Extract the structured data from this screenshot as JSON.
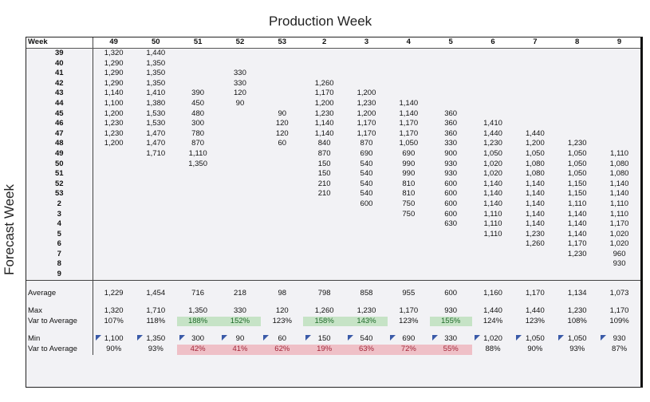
{
  "titles": {
    "production_week": "Production Week",
    "forecast_week": "Forecast Week"
  },
  "table": {
    "corner_label": "Week",
    "columns": [
      "49",
      "50",
      "51",
      "52",
      "53",
      "2",
      "3",
      "4",
      "5",
      "6",
      "7",
      "8",
      "9"
    ],
    "rows": [
      {
        "week": "39",
        "values": [
          "1,320",
          "1,440",
          "",
          "",
          "",
          "",
          "",
          "",
          "",
          "",
          "",
          "",
          ""
        ]
      },
      {
        "week": "40",
        "values": [
          "1,290",
          "1,350",
          "",
          "",
          "",
          "",
          "",
          "",
          "",
          "",
          "",
          "",
          ""
        ]
      },
      {
        "week": "41",
        "values": [
          "1,290",
          "1,350",
          "",
          "330",
          "",
          "",
          "",
          "",
          "",
          "",
          "",
          "",
          ""
        ]
      },
      {
        "week": "42",
        "values": [
          "1,290",
          "1,350",
          "",
          "330",
          "",
          "1,260",
          "",
          "",
          "",
          "",
          "",
          "",
          ""
        ]
      },
      {
        "week": "43",
        "values": [
          "1,140",
          "1,410",
          "390",
          "120",
          "",
          "1,170",
          "1,200",
          "",
          "",
          "",
          "",
          "",
          ""
        ]
      },
      {
        "week": "44",
        "values": [
          "1,100",
          "1,380",
          "450",
          "90",
          "",
          "1,200",
          "1,230",
          "1,140",
          "",
          "",
          "",
          "",
          ""
        ]
      },
      {
        "week": "45",
        "values": [
          "1,200",
          "1,530",
          "480",
          "",
          "90",
          "1,230",
          "1,200",
          "1,140",
          "360",
          "",
          "",
          "",
          ""
        ]
      },
      {
        "week": "46",
        "values": [
          "1,230",
          "1,530",
          "300",
          "",
          "120",
          "1,140",
          "1,170",
          "1,170",
          "360",
          "1,410",
          "",
          "",
          ""
        ]
      },
      {
        "week": "47",
        "values": [
          "1,230",
          "1,470",
          "780",
          "",
          "120",
          "1,140",
          "1,170",
          "1,170",
          "360",
          "1,440",
          "1,440",
          "",
          ""
        ]
      },
      {
        "week": "48",
        "values": [
          "1,200",
          "1,470",
          "870",
          "",
          "60",
          "840",
          "870",
          "1,050",
          "330",
          "1,230",
          "1,200",
          "1,230",
          ""
        ]
      },
      {
        "week": "49",
        "values": [
          "",
          "1,710",
          "1,110",
          "",
          "",
          "870",
          "690",
          "690",
          "900",
          "1,050",
          "1,050",
          "1,050",
          "1,110"
        ]
      },
      {
        "week": "50",
        "values": [
          "",
          "",
          "1,350",
          "",
          "",
          "150",
          "540",
          "990",
          "930",
          "1,020",
          "1,080",
          "1,050",
          "1,080"
        ]
      },
      {
        "week": "51",
        "values": [
          "",
          "",
          "",
          "",
          "",
          "150",
          "540",
          "990",
          "930",
          "1,020",
          "1,080",
          "1,050",
          "1,080"
        ]
      },
      {
        "week": "52",
        "values": [
          "",
          "",
          "",
          "",
          "",
          "210",
          "540",
          "810",
          "600",
          "1,140",
          "1,140",
          "1,150",
          "1,140"
        ]
      },
      {
        "week": "53",
        "values": [
          "",
          "",
          "",
          "",
          "",
          "210",
          "540",
          "810",
          "600",
          "1,140",
          "1,140",
          "1,150",
          "1,140"
        ]
      },
      {
        "week": "2",
        "values": [
          "",
          "",
          "",
          "",
          "",
          "",
          "600",
          "750",
          "600",
          "1,140",
          "1,140",
          "1,110",
          "1,110"
        ]
      },
      {
        "week": "3",
        "values": [
          "",
          "",
          "",
          "",
          "",
          "",
          "",
          "750",
          "600",
          "1,110",
          "1,140",
          "1,140",
          "1,110"
        ]
      },
      {
        "week": "4",
        "values": [
          "",
          "",
          "",
          "",
          "",
          "",
          "",
          "",
          "630",
          "1,110",
          "1,140",
          "1,140",
          "1,170"
        ]
      },
      {
        "week": "5",
        "values": [
          "",
          "",
          "",
          "",
          "",
          "",
          "",
          "",
          "",
          "1,110",
          "1,230",
          "1,140",
          "1,020"
        ]
      },
      {
        "week": "6",
        "values": [
          "",
          "",
          "",
          "",
          "",
          "",
          "",
          "",
          "",
          "",
          "1,260",
          "1,170",
          "1,020"
        ]
      },
      {
        "week": "7",
        "values": [
          "",
          "",
          "",
          "",
          "",
          "",
          "",
          "",
          "",
          "",
          "",
          "1,230",
          "960"
        ]
      },
      {
        "week": "8",
        "values": [
          "",
          "",
          "",
          "",
          "",
          "",
          "",
          "",
          "",
          "",
          "",
          "",
          "930"
        ]
      },
      {
        "week": "9",
        "values": [
          "",
          "",
          "",
          "",
          "",
          "",
          "",
          "",
          "",
          "",
          "",
          "",
          ""
        ]
      }
    ],
    "stats": {
      "average": {
        "label": "Average",
        "values": [
          "1,229",
          "1,454",
          "716",
          "218",
          "98",
          "798",
          "858",
          "955",
          "600",
          "1,160",
          "1,170",
          "1,134",
          "1,073"
        ]
      },
      "max": {
        "label": "Max",
        "values": [
          "1,320",
          "1,710",
          "1,350",
          "330",
          "120",
          "1,260",
          "1,230",
          "1,170",
          "930",
          "1,440",
          "1,440",
          "1,230",
          "1,170"
        ]
      },
      "max_var": {
        "label": "Var to Average",
        "values": [
          "107%",
          "118%",
          "188%",
          "152%",
          "123%",
          "158%",
          "143%",
          "123%",
          "155%",
          "124%",
          "123%",
          "108%",
          "109%"
        ],
        "highlight": [
          "",
          "",
          "g",
          "g",
          "",
          "g",
          "g",
          "",
          "g",
          "",
          "",
          "",
          ""
        ]
      },
      "min": {
        "label": "Min",
        "values": [
          "1,100",
          "1,350",
          "300",
          "90",
          "60",
          "150",
          "540",
          "690",
          "330",
          "1,020",
          "1,050",
          "1,050",
          "930"
        ]
      },
      "min_var": {
        "label": "Var to Average",
        "values": [
          "90%",
          "93%",
          "42%",
          "41%",
          "62%",
          "19%",
          "63%",
          "72%",
          "55%",
          "88%",
          "90%",
          "93%",
          "87%"
        ],
        "highlight": [
          "",
          "",
          "r",
          "r",
          "r",
          "r",
          "r",
          "r",
          "r",
          "",
          "",
          "",
          ""
        ]
      }
    }
  },
  "colors": {
    "table_bg": "#f2f2f5",
    "green_fill": "#c6e3c6",
    "green_text": "#1f6b2a",
    "red_fill": "#efc0c7",
    "red_text": "#a3273a",
    "flag_blue": "#3a5aa8"
  }
}
